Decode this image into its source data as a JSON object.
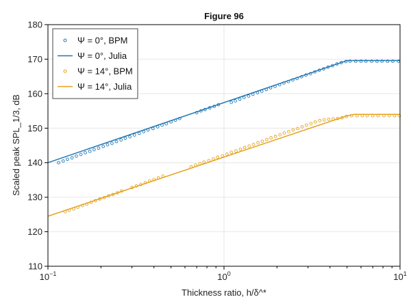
{
  "chart_data": {
    "type": "scatter",
    "title": "Figure 96",
    "xlabel": "Thickness ratio, h/δ^*",
    "ylabel": "Scaled peak SPL_1/3, dB",
    "x_scale": "log",
    "xlim": [
      0.1,
      10
    ],
    "ylim": [
      110,
      180
    ],
    "x_ticks": [
      {
        "value": 0.1,
        "base": "10",
        "exp": "−1"
      },
      {
        "value": 1,
        "base": "10",
        "exp": "0"
      },
      {
        "value": 10,
        "base": "10",
        "exp": "1"
      }
    ],
    "y_ticks": [
      110,
      120,
      130,
      140,
      150,
      160,
      170,
      180
    ],
    "grid": true,
    "legend_position": "top-left",
    "colors": {
      "blue": "#1f77b4",
      "orange": "#e5a11a"
    },
    "series": [
      {
        "name": "Ψ = 0°, BPM",
        "kind": "markers",
        "color": "#1f77b4",
        "x": [
          0.115,
          0.122,
          0.129,
          0.137,
          0.145,
          0.154,
          0.163,
          0.173,
          0.183,
          0.194,
          0.206,
          0.218,
          0.231,
          0.245,
          0.26,
          0.275,
          0.292,
          0.31,
          0.33,
          0.35,
          0.37,
          0.395,
          0.42,
          0.445,
          0.47,
          0.5,
          0.53,
          0.56,
          0.7,
          0.74,
          0.78,
          0.83,
          0.88,
          0.93,
          1.1,
          1.16,
          1.23,
          1.3,
          1.38,
          1.46,
          1.55,
          1.64,
          1.74,
          1.84,
          1.95,
          2.07,
          2.19,
          2.32,
          2.46,
          2.6,
          2.76,
          2.92,
          3.1,
          3.28,
          3.48,
          3.68,
          3.9,
          4.13,
          4.38,
          4.64,
          4.92,
          5.2,
          5.6,
          6.0,
          6.4,
          6.9,
          7.4,
          7.9,
          8.5,
          9.1,
          9.8
        ],
        "y": [
          140.0,
          140.5,
          141.0,
          141.4,
          141.9,
          142.4,
          142.9,
          143.3,
          143.8,
          144.2,
          144.7,
          145.2,
          145.6,
          146.1,
          146.6,
          147.1,
          147.5,
          148.0,
          148.5,
          149.0,
          149.5,
          149.9,
          150.4,
          150.9,
          151.3,
          151.8,
          152.3,
          152.8,
          154.5,
          155.0,
          155.4,
          155.9,
          156.3,
          156.8,
          157.5,
          157.9,
          158.4,
          158.9,
          159.3,
          159.8,
          160.3,
          160.7,
          161.2,
          161.7,
          162.1,
          162.6,
          163.1,
          163.5,
          164.0,
          164.4,
          164.9,
          165.4,
          165.8,
          166.3,
          166.8,
          167.2,
          167.7,
          168.1,
          168.6,
          169.0,
          169.3,
          169.4,
          169.4,
          169.4,
          169.4,
          169.4,
          169.4,
          169.4,
          169.4,
          169.4,
          169.4
        ]
      },
      {
        "name": "Ψ = 0°, Julia",
        "kind": "line",
        "color": "#1f77b4",
        "x": [
          0.1,
          5.0,
          10.0
        ],
        "y": [
          140.0,
          169.6,
          169.6
        ]
      },
      {
        "name": "Ψ = 14°, BPM",
        "kind": "markers",
        "color": "#e5a11a",
        "x": [
          0.125,
          0.132,
          0.14,
          0.148,
          0.157,
          0.166,
          0.176,
          0.186,
          0.197,
          0.209,
          0.221,
          0.234,
          0.248,
          0.262,
          0.3,
          0.318,
          0.337,
          0.357,
          0.378,
          0.4,
          0.424,
          0.45,
          0.65,
          0.69,
          0.73,
          0.77,
          0.82,
          0.87,
          0.92,
          0.98,
          1.04,
          1.1,
          1.17,
          1.24,
          1.31,
          1.39,
          1.47,
          1.56,
          1.65,
          1.75,
          1.85,
          1.96,
          2.08,
          2.2,
          2.33,
          2.47,
          2.62,
          2.78,
          2.94,
          3.12,
          3.3,
          3.5,
          3.71,
          3.93,
          4.17,
          4.42,
          4.68,
          4.96,
          5.3,
          5.7,
          6.1,
          6.5,
          7.0,
          7.5,
          8.1,
          8.7,
          9.3,
          9.9
        ],
        "y": [
          125.8,
          126.2,
          126.6,
          127.1,
          127.6,
          128.0,
          128.5,
          129.0,
          129.5,
          129.9,
          130.4,
          130.8,
          131.3,
          131.8,
          132.8,
          133.3,
          133.7,
          134.2,
          134.7,
          135.1,
          135.6,
          136.1,
          138.8,
          139.3,
          139.7,
          140.2,
          140.6,
          141.1,
          141.6,
          142.0,
          142.5,
          143.0,
          143.4,
          143.9,
          144.4,
          144.8,
          145.3,
          145.8,
          146.2,
          146.7,
          147.2,
          147.6,
          148.1,
          148.6,
          149.0,
          149.5,
          149.9,
          150.4,
          150.9,
          151.3,
          151.8,
          152.2,
          152.4,
          152.6,
          152.7,
          152.8,
          153.0,
          153.4,
          153.6,
          153.6,
          153.6,
          153.6,
          153.6,
          153.6,
          153.6,
          153.6,
          153.6,
          153.6
        ]
      },
      {
        "name": "Ψ = 14°, Julia",
        "kind": "line",
        "color": "#e5a11a",
        "x": [
          0.1,
          5.0,
          5.5,
          10.0
        ],
        "y": [
          124.5,
          153.6,
          154.0,
          154.0
        ]
      }
    ]
  }
}
